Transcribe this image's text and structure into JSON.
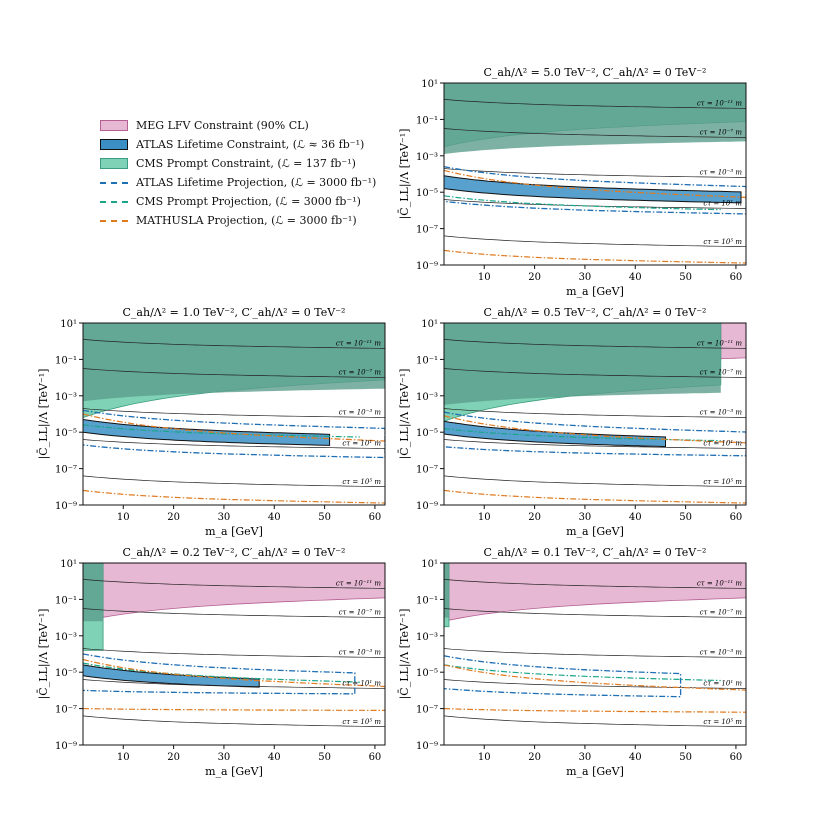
{
  "legend": {
    "items": [
      {
        "label": "MEG LFV Constraint (90% CL)",
        "kind": "fill",
        "color": "#e7b8d4",
        "edge": "#b55f92"
      },
      {
        "label": "ATLAS Lifetime Constraint, (ℒ ≈ 36 fb⁻¹)",
        "kind": "fill",
        "color": "#3b8fc4",
        "edge": "#111111"
      },
      {
        "label": "CMS Prompt Constraint, (ℒ = 137 fb⁻¹)",
        "kind": "fill",
        "color": "#7fd2b5",
        "edge": "#3a9c80"
      },
      {
        "label": "ATLAS Lifetime Projection, (ℒ = 3000 fb⁻¹)",
        "kind": "line",
        "color": "#1f6fb5"
      },
      {
        "label": "CMS Prompt Projection, (ℒ = 3000 fb⁻¹)",
        "kind": "line",
        "color": "#1aa58a"
      },
      {
        "label": "MATHUSLA Projection, (ℒ = 3000 fb⁻¹)",
        "kind": "line",
        "color": "#e07a1f"
      }
    ]
  },
  "chart_data": [
    {
      "type": "area",
      "title": "C_ah/Λ² = 5.0 TeV⁻², C′_ah/Λ² = 0 TeV⁻²",
      "xlabel": "m_a [GeV]",
      "ylabel": "|C̄_LL|/Λ [TeV⁻¹]",
      "xlim": [
        2,
        62
      ],
      "ylim_log10": [
        -9,
        1
      ],
      "xticks": [
        10,
        20,
        30,
        40,
        50,
        60
      ],
      "yticks": [
        "10^1",
        "10^-1",
        "10^-3",
        "10^-5",
        "10^-7",
        "10^-9"
      ],
      "ctau_labels": [
        "cτ = 10⁻¹¹ m",
        "cτ = 10⁻⁷ m",
        "cτ = 10⁻³ m",
        "cτ = 10¹ m",
        "cτ = 10⁵ m"
      ],
      "ctau_log10": [
        [
          0.1,
          -0.4
        ],
        [
          -1.5,
          -2.0
        ],
        [
          -3.7,
          -4.2
        ],
        [
          -5.4,
          -5.9
        ],
        [
          -7.4,
          -8.0
        ]
      ],
      "meg_start": null,
      "cms_upper_log10": 1,
      "cms_lower_log10": [
        -2.5,
        -1.1
      ],
      "cms_xmax": 62,
      "cms_dark_lower_log10": [
        -2.9,
        -2.2
      ],
      "atlas": {
        "lower_log10": [
          -4.8,
          -5.6
        ],
        "upper_log10": [
          -4.1,
          -5.0
        ],
        "xmax": 61
      },
      "atlas_proj": {
        "upper_log10": [
          -3.6,
          -4.7
        ],
        "lower_log10": [
          -5.5,
          -6.2
        ],
        "xmax": 62
      },
      "cms_proj_log10": [
        -5.2,
        -6.0
      ],
      "mathusla_proj": {
        "upper_log10": [
          -3.8,
          -5.3
        ],
        "lower_log10": [
          -8.2,
          -8.9
        ]
      }
    },
    {
      "type": "area",
      "title": "C_ah/Λ² = 1.0 TeV⁻², C′_ah/Λ² = 0 TeV⁻²",
      "xlabel": "m_a [GeV]",
      "ylabel": "|C̄_LL|/Λ [TeV⁻¹]",
      "xlim": [
        2,
        62
      ],
      "ylim_log10": [
        -9,
        1
      ],
      "xticks": [
        10,
        20,
        30,
        40,
        50,
        60
      ],
      "yticks": [
        "10^1",
        "10^-1",
        "10^-3",
        "10^-5",
        "10^-7",
        "10^-9"
      ],
      "ctau_labels": [
        "cτ = 10⁻¹¹ m",
        "cτ = 10⁻⁷ m",
        "cτ = 10⁻³ m",
        "cτ = 10¹ m",
        "cτ = 10⁵ m"
      ],
      "ctau_log10": [
        [
          0.1,
          -0.4
        ],
        [
          -1.5,
          -2.0
        ],
        [
          -3.7,
          -4.2
        ],
        [
          -5.4,
          -5.9
        ],
        [
          -7.4,
          -8.0
        ]
      ],
      "meg_start": null,
      "cms_upper_log10": 1,
      "cms_lower_log10": [
        -4.2,
        -2.1
      ],
      "cms_xmax": 62,
      "cms_dark_lower_log10": [
        -3.3,
        -2.6
      ],
      "atlas": {
        "lower_log10": [
          -5.0,
          -5.8
        ],
        "upper_log10": [
          -4.3,
          -5.2
        ],
        "xmax": 51
      },
      "atlas_proj": {
        "upper_log10": [
          -3.8,
          -4.8
        ],
        "lower_log10": [
          -5.7,
          -6.4
        ],
        "xmax": 62
      },
      "cms_proj_log10": [
        -4.6,
        -5.3
      ],
      "mathusla_proj": {
        "upper_log10": [
          -4.0,
          -5.5
        ],
        "lower_log10": [
          -8.2,
          -8.9
        ]
      }
    },
    {
      "type": "area",
      "title": "C_ah/Λ² = 0.5 TeV⁻², C′_ah/Λ² = 0 TeV⁻²",
      "xlabel": "m_a [GeV]",
      "ylabel": "|C̄_LL|/Λ [TeV⁻¹]",
      "xlim": [
        2,
        62
      ],
      "ylim_log10": [
        -9,
        1
      ],
      "xticks": [
        10,
        20,
        30,
        40,
        50,
        60
      ],
      "yticks": [
        "10^1",
        "10^-1",
        "10^-3",
        "10^-5",
        "10^-7",
        "10^-9"
      ],
      "ctau_labels": [
        "cτ = 10⁻¹¹ m",
        "cτ = 10⁻⁷ m",
        "cτ = 10⁻³ m",
        "cτ = 10¹ m",
        "cτ = 10⁵ m"
      ],
      "ctau_log10": [
        [
          0.1,
          -0.4
        ],
        [
          -1.5,
          -2.0
        ],
        [
          -3.7,
          -4.2
        ],
        [
          -5.4,
          -5.9
        ],
        [
          -7.4,
          -8.0
        ]
      ],
      "meg_start": 57,
      "cms_upper_log10": 1,
      "cms_lower_log10": [
        -4.4,
        -2.3
      ],
      "cms_xmax": 57,
      "cms_dark_lower_log10": [
        -3.5,
        -2.8
      ],
      "atlas": {
        "lower_log10": [
          -5.1,
          -5.9
        ],
        "upper_log10": [
          -4.4,
          -5.4
        ],
        "xmax": 46
      },
      "atlas_proj": {
        "upper_log10": [
          -3.9,
          -5.0
        ],
        "lower_log10": [
          -5.8,
          -6.3
        ],
        "xmax": 62
      },
      "cms_proj_log10": [
        -4.8,
        -5.5
      ],
      "mathusla_proj": {
        "upper_log10": [
          -4.1,
          -5.6
        ],
        "lower_log10": [
          -8.2,
          -8.9
        ]
      }
    },
    {
      "type": "area",
      "title": "C_ah/Λ² = 0.2 TeV⁻², C′_ah/Λ² = 0 TeV⁻²",
      "xlabel": "m_a [GeV]",
      "ylabel": "|C̄_LL|/Λ [TeV⁻¹]",
      "xlim": [
        2,
        62
      ],
      "ylim_log10": [
        -9,
        1
      ],
      "xticks": [
        10,
        20,
        30,
        40,
        50,
        60
      ],
      "yticks": [
        "10^1",
        "10^-1",
        "10^-3",
        "10^-5",
        "10^-7",
        "10^-9"
      ],
      "ctau_labels": [
        "cτ = 10⁻¹¹ m",
        "cτ = 10⁻⁷ m",
        "cτ = 10⁻³ m",
        "cτ = 10¹ m",
        "cτ = 10⁵ m"
      ],
      "ctau_log10": [
        [
          0.1,
          -0.4
        ],
        [
          -1.5,
          -2.0
        ],
        [
          -3.7,
          -4.2
        ],
        [
          -5.4,
          -5.9
        ],
        [
          -7.4,
          -8.0
        ]
      ],
      "meg_start": 2,
      "cms_upper_log10": 1,
      "cms_lower_log10": [
        -3.8,
        -3.8
      ],
      "cms_xmax": 6,
      "cms_dark_lower_log10": [
        -2.2,
        -2.2
      ],
      "atlas": {
        "lower_log10": [
          -5.2,
          -6.0
        ],
        "upper_log10": [
          -4.6,
          -5.6
        ],
        "xmax": 37
      },
      "atlas_proj": {
        "upper_log10": [
          -4.0,
          -5.1
        ],
        "lower_log10": [
          -6.0,
          -6.2
        ],
        "xmax": 56
      },
      "cms_proj_log10": [
        -4.5,
        -5.6
      ],
      "mathusla_proj": {
        "upper_log10": [
          -4.3,
          -5.8
        ],
        "lower_log10": [
          -7.0,
          -7.1
        ]
      }
    },
    {
      "type": "area",
      "title": "C_ah/Λ² = 0.1 TeV⁻², C′_ah/Λ² = 0 TeV⁻²",
      "xlabel": "m_a [GeV]",
      "ylabel": "|C̄_LL|/Λ [TeV⁻¹]",
      "xlim": [
        2,
        62
      ],
      "ylim_log10": [
        -9,
        1
      ],
      "xticks": [
        10,
        20,
        30,
        40,
        50,
        60
      ],
      "yticks": [
        "10^1",
        "10^-1",
        "10^-3",
        "10^-5",
        "10^-7",
        "10^-9"
      ],
      "ctau_labels": [
        "cτ = 10⁻¹¹ m",
        "cτ = 10⁻⁷ m",
        "cτ = 10⁻³ m",
        "cτ = 10¹ m",
        "cτ = 10⁵ m"
      ],
      "ctau_log10": [
        [
          0.1,
          -0.4
        ],
        [
          -1.5,
          -2.0
        ],
        [
          -3.7,
          -4.2
        ],
        [
          -5.4,
          -5.9
        ],
        [
          -7.4,
          -8.0
        ]
      ],
      "meg_start": 2,
      "cms_upper_log10": 1,
      "cms_lower_log10": [
        -2.5,
        -2.5
      ],
      "cms_xmax": 3,
      "cms_dark_lower_log10": [
        -2.0,
        -2.0
      ],
      "atlas": null,
      "atlas_proj": {
        "upper_log10": [
          -4.1,
          -5.2
        ],
        "lower_log10": [
          -5.9,
          -6.4
        ],
        "xmax": 49
      },
      "cms_proj_log10": [
        -4.6,
        -5.5
      ],
      "mathusla_proj": {
        "upper_log10": [
          -4.6,
          -6.0
        ],
        "lower_log10": [
          -7.0,
          -7.2
        ]
      }
    }
  ]
}
